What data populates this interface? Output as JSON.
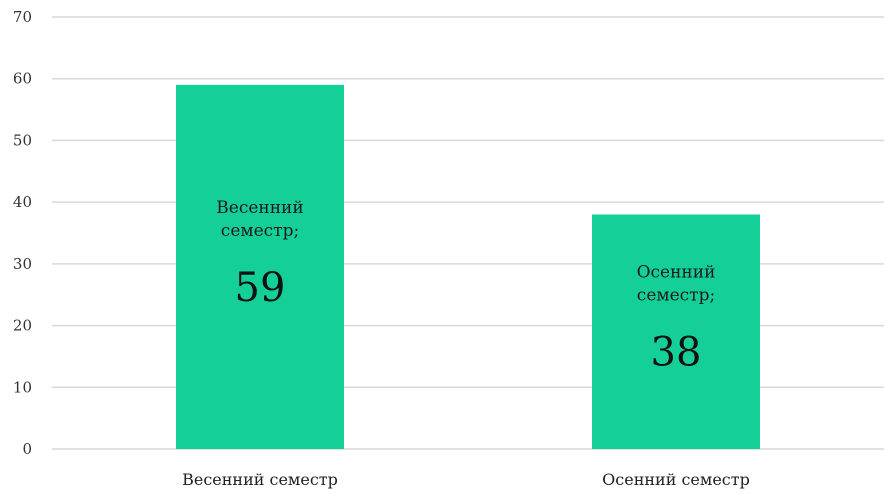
{
  "chart_data": {
    "type": "bar",
    "categories": [
      "Весенний семестр",
      "Осенний семестр"
    ],
    "values": [
      59,
      38
    ],
    "data_labels": [
      {
        "name_lines": [
          "Весенний",
          "семестр;"
        ],
        "value": "59"
      },
      {
        "name_lines": [
          "Осенний",
          "семестр;"
        ],
        "value": "38"
      }
    ],
    "ylim": [
      0,
      70
    ],
    "yticks": [
      0,
      10,
      20,
      30,
      40,
      50,
      60,
      70
    ],
    "grid": true,
    "legend": "none",
    "colors": {
      "bar": "#14cf98",
      "grid": "#d9d9d9"
    }
  }
}
